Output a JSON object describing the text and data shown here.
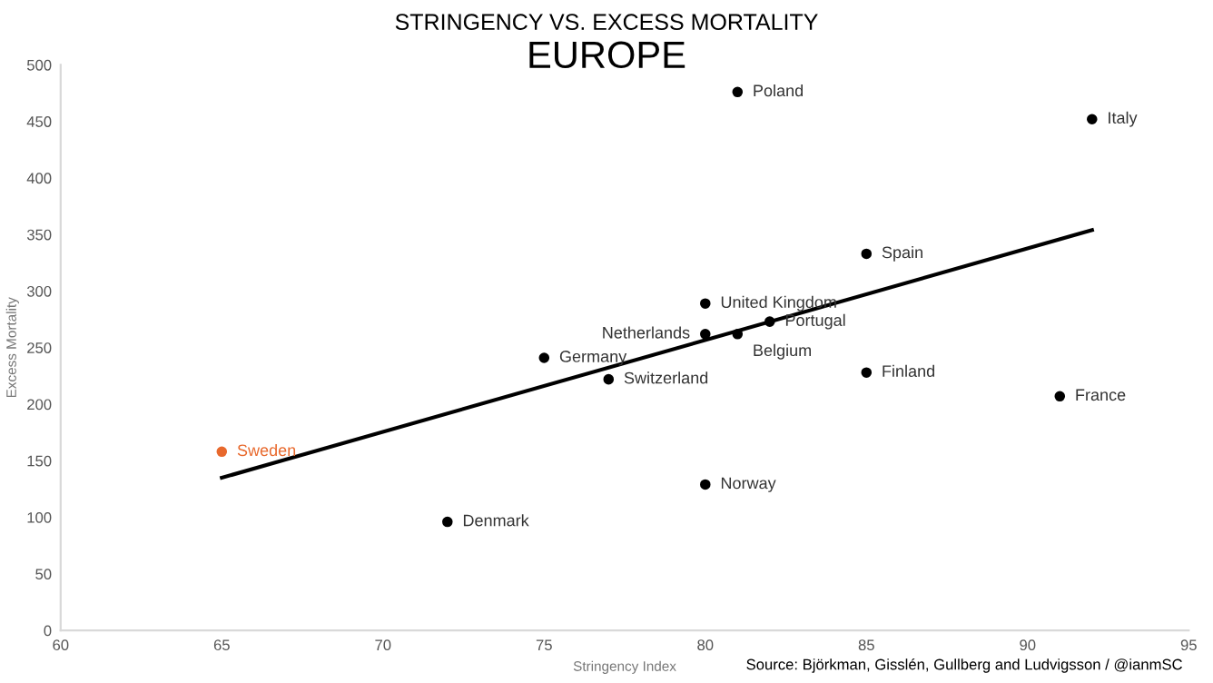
{
  "chart_data": {
    "type": "scatter",
    "title": "STRINGENCY VS. EXCESS MORTALITY",
    "subtitle": "EUROPE",
    "xlabel": "Stringency Index",
    "ylabel": "Excess Mortality",
    "annotations": [
      "Source: Björkman, Gisslén, Gullberg and Ludvigsson / @ianmSC"
    ],
    "xlim": [
      60,
      95
    ],
    "xticks": [
      60,
      65,
      70,
      75,
      80,
      85,
      90,
      95
    ],
    "ylim": [
      0,
      500
    ],
    "yticks": [
      0,
      50,
      100,
      150,
      200,
      250,
      300,
      350,
      400,
      450,
      500
    ],
    "grid": false,
    "legend": false,
    "marker": "circle",
    "series": [
      {
        "name": "Poland",
        "color": "#000000",
        "x": [
          81
        ],
        "values": [
          476
        ]
      },
      {
        "name": "Italy",
        "color": "#000000",
        "x": [
          92
        ],
        "values": [
          452
        ]
      },
      {
        "name": "Spain",
        "color": "#000000",
        "x": [
          85
        ],
        "values": [
          333
        ]
      },
      {
        "name": "United Kingdom",
        "color": "#000000",
        "x": [
          80
        ],
        "values": [
          289
        ]
      },
      {
        "name": "Portugal",
        "color": "#000000",
        "x": [
          82
        ],
        "values": [
          273
        ]
      },
      {
        "name": "Netherlands",
        "color": "#000000",
        "x": [
          80
        ],
        "values": [
          262
        ]
      },
      {
        "name": "Belgium",
        "color": "#000000",
        "x": [
          81
        ],
        "values": [
          262
        ]
      },
      {
        "name": "Germany",
        "color": "#000000",
        "x": [
          75
        ],
        "values": [
          241
        ]
      },
      {
        "name": "Finland",
        "color": "#000000",
        "x": [
          85
        ],
        "values": [
          228
        ]
      },
      {
        "name": "Switzerland",
        "color": "#000000",
        "x": [
          77
        ],
        "values": [
          222
        ]
      },
      {
        "name": "France",
        "color": "#000000",
        "x": [
          91
        ],
        "values": [
          207
        ]
      },
      {
        "name": "Sweden",
        "color": "#e8692d",
        "x": [
          65
        ],
        "values": [
          158
        ]
      },
      {
        "name": "Norway",
        "color": "#000000",
        "x": [
          80
        ],
        "values": [
          129
        ]
      },
      {
        "name": "Denmark",
        "color": "#000000",
        "x": [
          72
        ],
        "values": [
          96
        ]
      },
      {
        "type": "line",
        "marker": "none",
        "color": "#000000",
        "x": [
          65,
          92
        ],
        "values": [
          135,
          354
        ]
      }
    ]
  }
}
